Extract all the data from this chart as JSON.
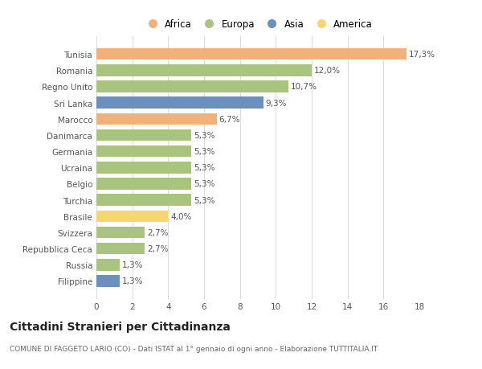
{
  "categories": [
    "Tunisia",
    "Romania",
    "Regno Unito",
    "Sri Lanka",
    "Marocco",
    "Danimarca",
    "Germania",
    "Ucraina",
    "Belgio",
    "Turchia",
    "Brasile",
    "Svizzera",
    "Repubblica Ceca",
    "Russia",
    "Filippine"
  ],
  "values": [
    17.3,
    12.0,
    10.7,
    9.3,
    6.7,
    5.3,
    5.3,
    5.3,
    5.3,
    5.3,
    4.0,
    2.7,
    2.7,
    1.3,
    1.3
  ],
  "labels": [
    "17,3%",
    "12,0%",
    "10,7%",
    "9,3%",
    "6,7%",
    "5,3%",
    "5,3%",
    "5,3%",
    "5,3%",
    "5,3%",
    "4,0%",
    "2,7%",
    "2,7%",
    "1,3%",
    "1,3%"
  ],
  "bar_colors": [
    "#f0b27a",
    "#a9c47f",
    "#a9c47f",
    "#6b8fbf",
    "#f0b27a",
    "#a9c47f",
    "#a9c47f",
    "#a9c47f",
    "#a9c47f",
    "#a9c47f",
    "#f5d76e",
    "#a9c47f",
    "#a9c47f",
    "#a9c47f",
    "#6b8fbf"
  ],
  "legend_labels": [
    "Africa",
    "Europa",
    "Asia",
    "America"
  ],
  "legend_colors": [
    "#f0b27a",
    "#a9c47f",
    "#6b8fbf",
    "#f5d76e"
  ],
  "title": "Cittadini Stranieri per Cittadinanza",
  "subtitle": "COMUNE DI FAGGETO LARIO (CO) - Dati ISTAT al 1° gennaio di ogni anno - Elaborazione TUTTITALIA.IT",
  "xlim": [
    0,
    18
  ],
  "xticks": [
    0,
    2,
    4,
    6,
    8,
    10,
    12,
    14,
    16,
    18
  ],
  "background_color": "#ffffff",
  "grid_color": "#dddddd",
  "label_fontsize": 7.5,
  "tick_fontsize": 7.5,
  "title_fontsize": 10,
  "subtitle_fontsize": 6.5,
  "legend_fontsize": 8.5,
  "bar_height": 0.72
}
